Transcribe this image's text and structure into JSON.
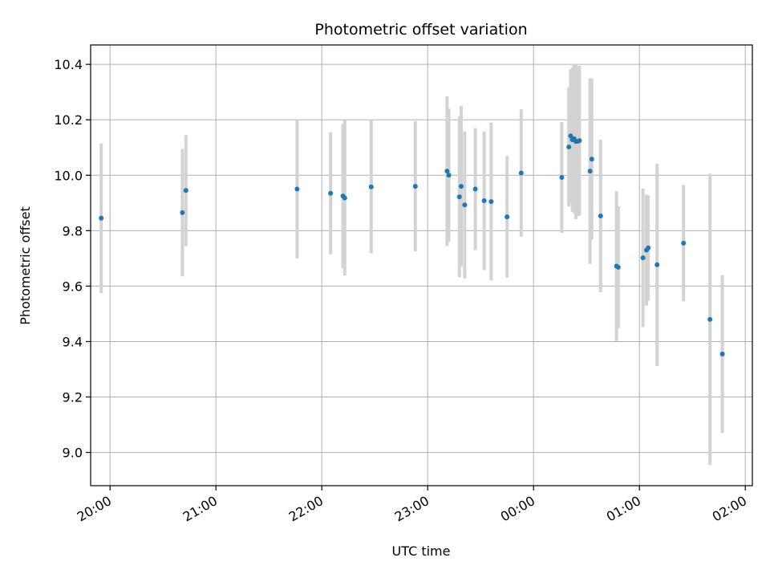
{
  "chart_data": {
    "type": "scatter",
    "title": "Photometric offset variation",
    "xlabel": "UTC time",
    "ylabel": "Photometric offset",
    "x_unit": "UTC time (hh:mm), night crossing midnight",
    "xlim": [
      "19:49",
      "02:04"
    ],
    "ylim": [
      8.88,
      10.47
    ],
    "x_ticks": [
      "20:00",
      "21:00",
      "22:00",
      "23:00",
      "00:00",
      "01:00",
      "02:00"
    ],
    "y_ticks": [
      "9.0",
      "9.2",
      "9.4",
      "9.6",
      "9.8",
      "10.0",
      "10.2",
      "10.4"
    ],
    "grid": true,
    "colors": {
      "point": "#1f77b4",
      "errorbar": "#d3d3d3",
      "grid": "#b0b0b0",
      "axis": "#000000"
    },
    "series": [
      {
        "points": [
          {
            "x": "19:55",
            "y": 9.845,
            "err": 0.27
          },
          {
            "x": "20:41",
            "y": 9.865,
            "err": 0.23
          },
          {
            "x": "20:43",
            "y": 9.945,
            "err": 0.2
          },
          {
            "x": "21:46",
            "y": 9.95,
            "err": 0.25
          },
          {
            "x": "22:05",
            "y": 9.935,
            "err": 0.22
          },
          {
            "x": "22:12",
            "y": 9.925,
            "err": 0.26
          },
          {
            "x": "22:13",
            "y": 9.918,
            "err": 0.28
          },
          {
            "x": "22:28",
            "y": 9.958,
            "err": 0.24
          },
          {
            "x": "22:53",
            "y": 9.96,
            "err": 0.235
          },
          {
            "x": "23:11",
            "y": 10.015,
            "err": 0.27
          },
          {
            "x": "23:12",
            "y": 10.0,
            "err": 0.24
          },
          {
            "x": "23:18",
            "y": 9.922,
            "err": 0.29
          },
          {
            "x": "23:19",
            "y": 9.96,
            "err": 0.29
          },
          {
            "x": "23:21",
            "y": 9.893,
            "err": 0.265
          },
          {
            "x": "23:27",
            "y": 9.95,
            "err": 0.22
          },
          {
            "x": "23:32",
            "y": 9.908,
            "err": 0.25
          },
          {
            "x": "23:36",
            "y": 9.905,
            "err": 0.285
          },
          {
            "x": "23:45",
            "y": 9.85,
            "err": 0.22
          },
          {
            "x": "23:53",
            "y": 10.008,
            "err": 0.23
          },
          {
            "x": "00:16",
            "y": 9.992,
            "err": 0.2
          },
          {
            "x": "00:20",
            "y": 10.102,
            "err": 0.215
          },
          {
            "x": "00:21",
            "y": 10.142,
            "err": 0.24
          },
          {
            "x": "00:22",
            "y": 10.128,
            "err": 0.26
          },
          {
            "x": "00:23",
            "y": 10.132,
            "err": 0.27
          },
          {
            "x": "00:24",
            "y": 10.122,
            "err": 0.28
          },
          {
            "x": "00:25",
            "y": 10.122,
            "err": 0.27
          },
          {
            "x": "00:26",
            "y": 10.125,
            "err": 0.27
          },
          {
            "x": "00:32",
            "y": 10.015,
            "err": 0.335
          },
          {
            "x": "00:33",
            "y": 10.058,
            "err": 0.29
          },
          {
            "x": "00:38",
            "y": 9.853,
            "err": 0.275
          },
          {
            "x": "00:47",
            "y": 9.672,
            "err": 0.27
          },
          {
            "x": "00:48",
            "y": 9.668,
            "err": 0.22
          },
          {
            "x": "01:02",
            "y": 9.702,
            "err": 0.25
          },
          {
            "x": "01:04",
            "y": 9.73,
            "err": 0.2
          },
          {
            "x": "01:05",
            "y": 9.738,
            "err": 0.19
          },
          {
            "x": "01:10",
            "y": 9.677,
            "err": 0.365
          },
          {
            "x": "01:25",
            "y": 9.755,
            "err": 0.21
          },
          {
            "x": "01:40",
            "y": 9.48,
            "err": 0.525
          },
          {
            "x": "01:47",
            "y": 9.355,
            "err": 0.285
          }
        ]
      }
    ]
  }
}
